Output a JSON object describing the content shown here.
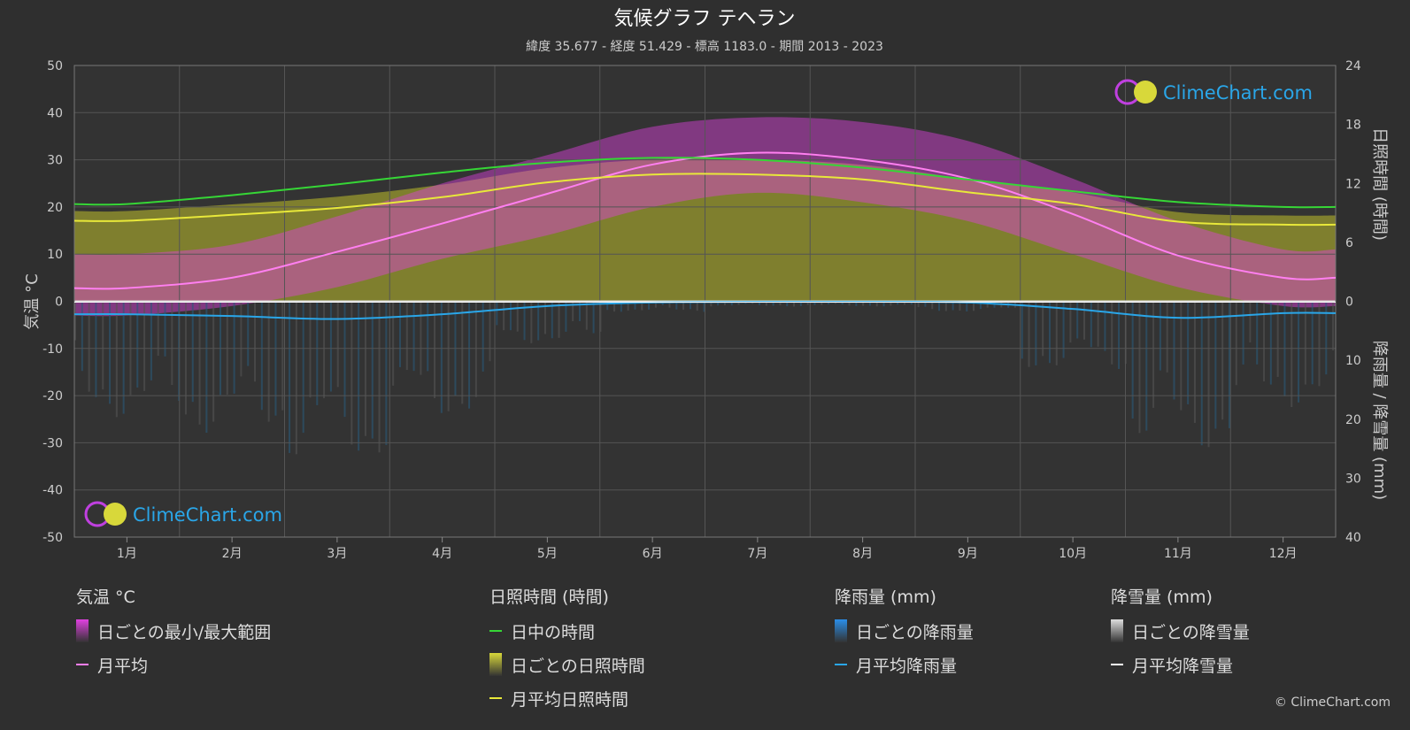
{
  "chart_data": {
    "type": "line",
    "title": "気候グラフ テヘラン",
    "subtitle": "緯度 35.677 - 経度 51.429 - 標高 1183.0 - 期間 2013 - 2023",
    "categories": [
      "1月",
      "2月",
      "3月",
      "4月",
      "5月",
      "6月",
      "7月",
      "8月",
      "9月",
      "10月",
      "11月",
      "12月"
    ],
    "y_left": {
      "label": "気温 °C",
      "range": [
        -50,
        50
      ],
      "ticks": [
        "50",
        "40",
        "30",
        "20",
        "10",
        "0",
        "-10",
        "-20",
        "-30",
        "-40",
        "-50"
      ]
    },
    "y_right_top": {
      "label": "日照時間 (時間)",
      "range": [
        0,
        24
      ],
      "ticks": [
        "24",
        "18",
        "12",
        "6",
        "0"
      ]
    },
    "y_right_bottom": {
      "label": "降雨量 / 降雪量 (mm)",
      "range": [
        0,
        40
      ],
      "ticks": [
        "10",
        "20",
        "30",
        "40"
      ]
    },
    "series": [
      {
        "name": "月平均",
        "unit": "°C",
        "color": "#ff7ff0",
        "values": [
          2.8,
          5.0,
          10.5,
          16.5,
          22.8,
          29.0,
          31.5,
          30.0,
          26.0,
          18.5,
          9.7,
          5.0
        ]
      },
      {
        "name": "日中の時間",
        "unit": "時間",
        "color": "#36d636",
        "values": [
          9.9,
          10.8,
          11.9,
          13.1,
          14.1,
          14.6,
          14.4,
          13.6,
          12.4,
          11.2,
          10.1,
          9.6
        ]
      },
      {
        "name": "月平均日照時間",
        "unit": "時間",
        "color": "#e8e83a",
        "values": [
          8.2,
          8.8,
          9.5,
          10.6,
          12.1,
          12.9,
          12.9,
          12.4,
          11.1,
          9.9,
          8.1,
          7.8
        ]
      },
      {
        "name": "月平均降雨量",
        "unit": "mm",
        "color": "#2aa6e8",
        "values": [
          2.2,
          2.5,
          3.0,
          2.2,
          0.8,
          0.2,
          0.1,
          0.1,
          0.2,
          1.3,
          2.8,
          2.0
        ]
      }
    ],
    "temp_range_band": {
      "name": "日ごとの最小/最大範囲",
      "min": [
        -3,
        -1,
        3,
        9,
        14,
        20,
        23,
        21,
        17,
        10,
        3,
        -1
      ],
      "max": [
        10,
        12,
        18,
        25,
        31,
        37,
        39,
        38,
        34,
        26,
        17,
        11
      ]
    },
    "grid": true
  },
  "logo": {
    "text": "ClimeChart.com"
  },
  "legend": {
    "groups": [
      {
        "heading": "気温 °C",
        "items": [
          {
            "label": "日ごとの最小/最大範囲",
            "kind": "box",
            "color": "#e040e0"
          },
          {
            "label": "月平均",
            "kind": "line",
            "color": "#ff7ff0"
          }
        ]
      },
      {
        "heading": "日照時間 (時間)",
        "items": [
          {
            "label": "日中の時間",
            "kind": "line",
            "color": "#36d636"
          },
          {
            "label": "日ごとの日照時間",
            "kind": "box",
            "color": "#d8d83a"
          },
          {
            "label": "月平均日照時間",
            "kind": "line",
            "color": "#e8e83a"
          }
        ]
      },
      {
        "heading": "降雨量 (mm)",
        "items": [
          {
            "label": "日ごとの降雨量",
            "kind": "box",
            "color": "#2a8ee8"
          },
          {
            "label": "月平均降雨量",
            "kind": "line",
            "color": "#2aa6e8"
          }
        ]
      },
      {
        "heading": "降雪量 (mm)",
        "items": [
          {
            "label": "日ごとの降雪量",
            "kind": "box",
            "color": "#dddddd"
          },
          {
            "label": "月平均降雪量",
            "kind": "line",
            "color": "#ffffff"
          }
        ]
      }
    ]
  },
  "copyright": "© ClimeChart.com"
}
